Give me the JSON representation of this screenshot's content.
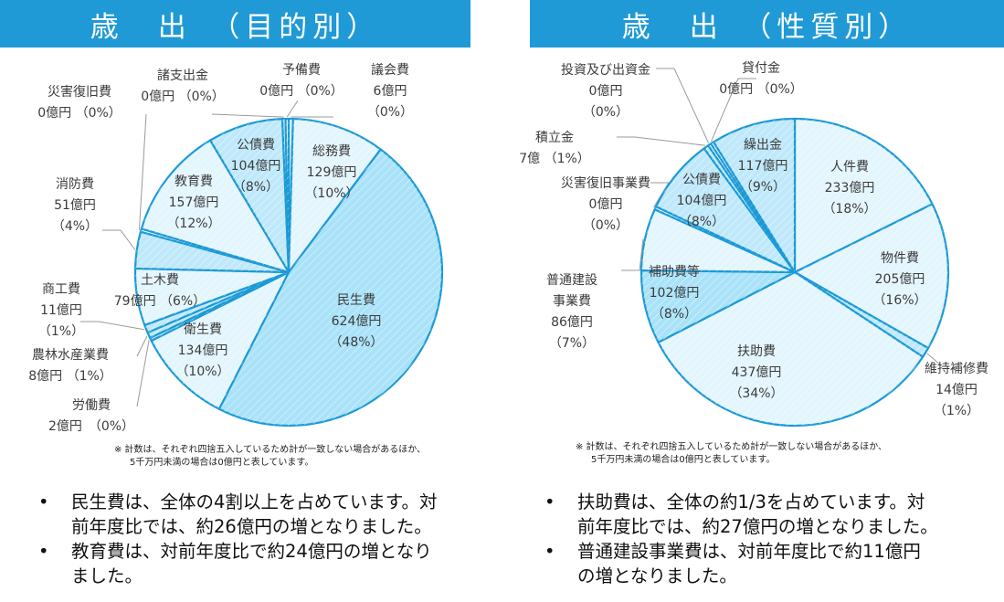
{
  "colors": {
    "banner": "#1f9ad6",
    "stroke": "#1c9ad6",
    "fill_light": "#e3f5fd",
    "fill_mid": "#bfe8fb",
    "fill_dark": "#a9e2f9",
    "leader": "#9a9a9a"
  },
  "left": {
    "title": "歳　出　（目的別）",
    "note_line1": "※ 計数は、それぞれ四捨五入しているため計が一致しない場合があるほか、",
    "note_line2": "5千万円未満の場合は0億円と表しています。",
    "bullets": [
      {
        "line1": "民生費は、全体の4割以上を占めています。対",
        "line2": "前年度比では、約26億円の増となりました。"
      },
      {
        "line1": "教育費は、対前年度比で約24億円の増となり",
        "line2": "ました。"
      }
    ]
  },
  "right": {
    "title": "歳　出　（性質別）",
    "note_line1": "※ 計数は、それぞれ四捨五入しているため計が一致しない場合があるほか、",
    "note_line2": "5千万円未満の場合は0億円と表しています。",
    "bullets": [
      {
        "line1": "扶助費は、全体の約1/3を占めています。対",
        "line2": "前年度比では、約27億円の増となりました。"
      },
      {
        "line1": "普通建設事業費は、対前年度比で約11億円",
        "line2": "の増となりました。"
      }
    ]
  },
  "chart_data": [
    {
      "type": "pie",
      "title": "歳　出　（目的別）",
      "unit": "億円",
      "slices": [
        {
          "name": "議会費",
          "value": 6,
          "pct": "（0%）",
          "value_label": "6億円",
          "lines": [
            "議会費",
            "6億円",
            "（0%）"
          ],
          "shade": "fill_light"
        },
        {
          "name": "総務費",
          "value": 129,
          "pct": "（10%）",
          "value_label": "129億円",
          "lines": [
            "総務費",
            "129億円",
            "（10%）"
          ],
          "shade": "fill_light"
        },
        {
          "name": "民生費",
          "value": 624,
          "pct": "（48%）",
          "value_label": "624億円",
          "lines": [
            "民生費",
            "624億円",
            "（48%）"
          ],
          "shade": "fill_dark"
        },
        {
          "name": "衛生費",
          "value": 134,
          "pct": "（10%）",
          "value_label": "134億円",
          "lines": [
            "衛生費",
            "134億円",
            "（10%）"
          ],
          "shade": "fill_light"
        },
        {
          "name": "労働費",
          "value": 2,
          "pct": "（0%）",
          "value_label": "2億円",
          "lines": [
            "労働費",
            "2億円　（0%）"
          ],
          "shade": "fill_mid"
        },
        {
          "name": "農林水産業費",
          "value": 8,
          "pct": "（1%）",
          "value_label": "8億円",
          "lines": [
            "農林水産業費",
            "8億円 （1%）"
          ],
          "shade": "fill_mid"
        },
        {
          "name": "商工費",
          "value": 11,
          "pct": "（1%）",
          "value_label": "11億円",
          "lines": [
            "商工費",
            "11億円",
            "（1%）"
          ],
          "shade": "fill_mid"
        },
        {
          "name": "土木費",
          "value": 79,
          "pct": "（6%）",
          "value_label": "79億円",
          "lines": [
            "土木費",
            "79億円 （6%）"
          ],
          "shade": "fill_light"
        },
        {
          "name": "消防費",
          "value": 51,
          "pct": "（4%）",
          "value_label": "51億円",
          "lines": [
            "消防費",
            "51億円",
            "（4%）"
          ],
          "shade": "fill_mid"
        },
        {
          "name": "災害復旧費",
          "value": 0,
          "pct": "（0%）",
          "value_label": "0億円",
          "lines": [
            "災害復旧費",
            "0億円 （0%）"
          ],
          "shade": "fill_light"
        },
        {
          "name": "教育費",
          "value": 157,
          "pct": "（12%）",
          "value_label": "157億円",
          "lines": [
            "教育費",
            "157億円",
            "（12%）"
          ],
          "shade": "fill_light"
        },
        {
          "name": "公債費",
          "value": 104,
          "pct": "（8%）",
          "value_label": "104億円",
          "lines": [
            "公債費",
            "104億円",
            "（8%）"
          ],
          "shade": "fill_mid"
        },
        {
          "name": "諸支出金",
          "value": 0,
          "pct": "（0%）",
          "value_label": "0億円",
          "lines": [
            "諸支出金",
            "0億円 （0%）"
          ],
          "shade": "fill_light"
        },
        {
          "name": "予備費",
          "value": 0,
          "pct": "（0%）",
          "value_label": "0億円",
          "lines": [
            "予備費",
            "0億円 （0%）"
          ],
          "shade": "fill_light"
        }
      ]
    },
    {
      "type": "pie",
      "title": "歳　出　（性質別）",
      "unit": "億円",
      "slices": [
        {
          "name": "人件費",
          "value": 233,
          "pct": "（18%）",
          "value_label": "233億円",
          "lines": [
            "人件費",
            "233億円",
            "（18%）"
          ],
          "shade": "fill_light"
        },
        {
          "name": "物件費",
          "value": 205,
          "pct": "（16%）",
          "value_label": "205億円",
          "lines": [
            "物件費",
            "205億円",
            "（16%）"
          ],
          "shade": "fill_light"
        },
        {
          "name": "維持補修費",
          "value": 14,
          "pct": "（1%）",
          "value_label": "14億円",
          "lines": [
            "維持補修費",
            "14億円",
            "（1%）"
          ],
          "shade": "fill_mid"
        },
        {
          "name": "扶助費",
          "value": 437,
          "pct": "（34%）",
          "value_label": "437億円",
          "lines": [
            "扶助費",
            "437億円",
            "（34%）"
          ],
          "shade": "fill_light"
        },
        {
          "name": "補助費等",
          "value": 102,
          "pct": "（8%）",
          "value_label": "102億円",
          "lines": [
            "補助費等",
            "102億円",
            "（8%）"
          ],
          "shade": "fill_dark"
        },
        {
          "name": "普通建設事業費",
          "value": 86,
          "pct": "（7%）",
          "value_label": "86億円",
          "lines": [
            "普通建設",
            "事業費",
            "86億円",
            "（7%）"
          ],
          "shade": "fill_light"
        },
        {
          "name": "災害復旧事業費",
          "value": 0,
          "pct": "（0%）",
          "value_label": "0億円",
          "lines": [
            "災害復旧事業費",
            "0億円",
            "（0%）"
          ],
          "shade": "fill_light"
        },
        {
          "name": "公債費",
          "value": 104,
          "pct": "（8%）",
          "value_label": "104億円",
          "lines": [
            "公債費",
            "104億円",
            "（8%）"
          ],
          "shade": "fill_mid"
        },
        {
          "name": "積立金",
          "value": 7,
          "pct": "（1%）",
          "value_label": "7億",
          "lines": [
            "積立金",
            "7億 （1%）"
          ],
          "shade": "fill_mid"
        },
        {
          "name": "投資及び出資金",
          "value": 0,
          "pct": "（0%）",
          "value_label": "0億円",
          "lines": [
            "投資及び出資金",
            "0億円",
            "（0%）"
          ],
          "shade": "fill_light"
        },
        {
          "name": "貸付金",
          "value": 0,
          "pct": "（0%）",
          "value_label": "0億円",
          "lines": [
            "貸付金",
            "0億円 （0%）"
          ],
          "shade": "fill_light"
        },
        {
          "name": "繰出金",
          "value": 117,
          "pct": "（9%）",
          "value_label": "117億円",
          "lines": [
            "繰出金",
            "117億円",
            "（9%）"
          ],
          "shade": "fill_mid"
        }
      ]
    }
  ]
}
